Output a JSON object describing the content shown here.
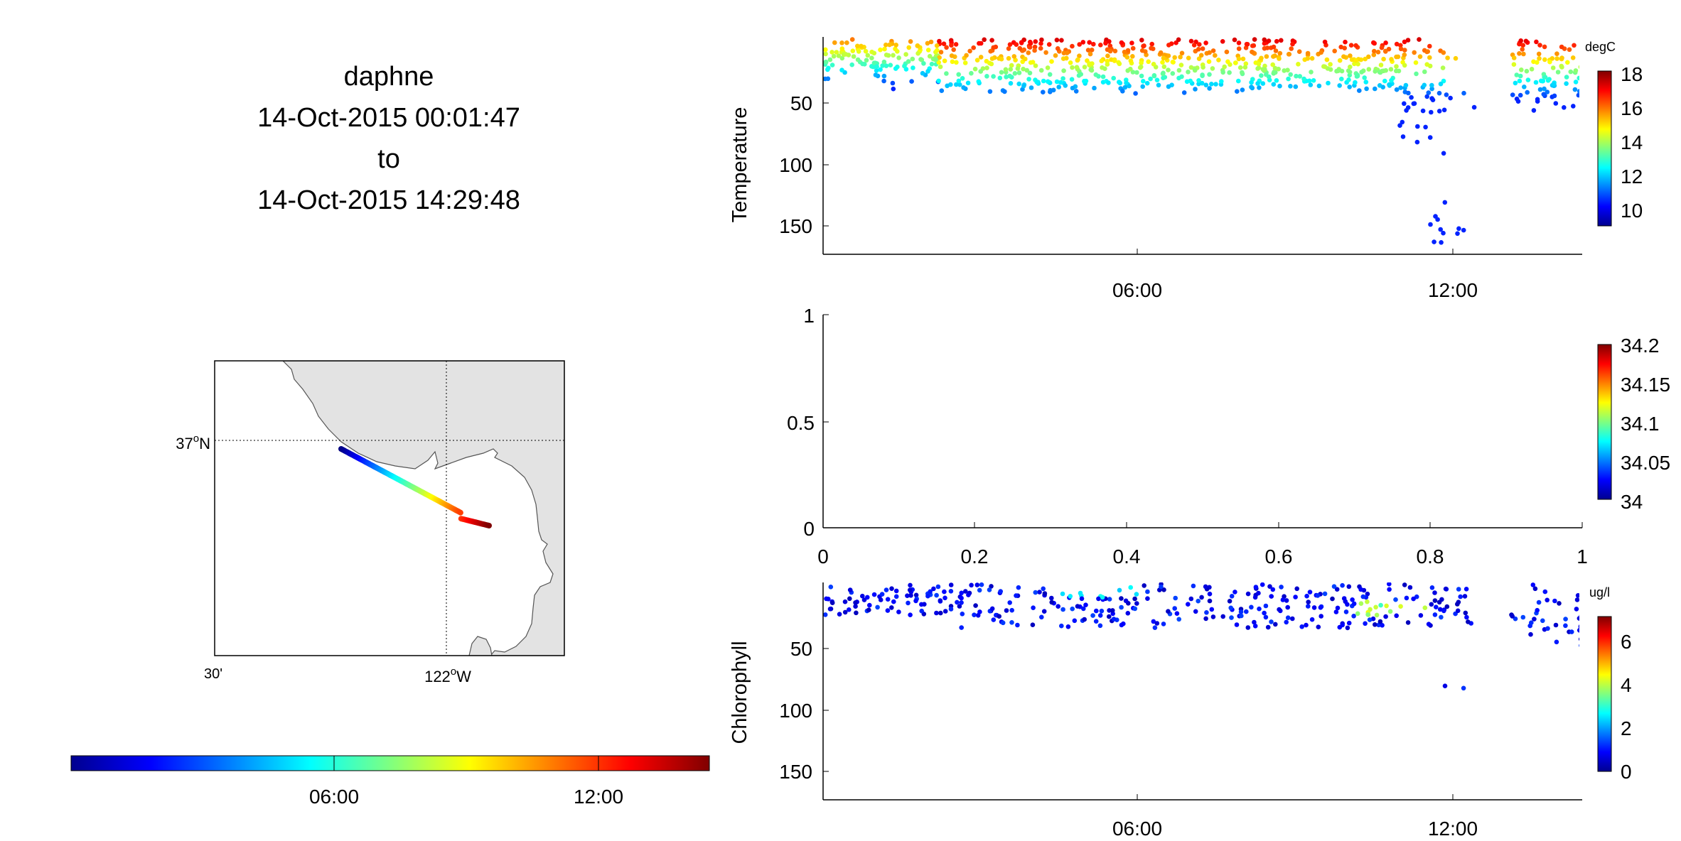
{
  "header": {
    "platform": "daphne",
    "start_time": "14-Oct-2015 00:01:47",
    "separator": "to",
    "end_time": "14-Oct-2015 14:29:48"
  },
  "colors": {
    "map_land": "#e3e3e3",
    "colormap": "jet",
    "axis": "#000000"
  },
  "map": {
    "lat_label": "37",
    "lat_suffix": "N",
    "lon_label_left": "30'",
    "lon_label_right": "122",
    "lon_suffix": "W",
    "track_colorbar_ticks": [
      "06:00",
      "12:00"
    ]
  },
  "chart_data": [
    {
      "type": "scatter",
      "id": "temperature",
      "title": "",
      "xlabel": "",
      "ylabel": "Temperature",
      "x_domain_hours": [
        0,
        14.5
      ],
      "x_tick_labels": [
        "06:00",
        "12:00"
      ],
      "x_tick_hours": [
        6,
        12
      ],
      "ylim": [
        172,
        0
      ],
      "y_reversed": true,
      "y_ticks": [
        50,
        100,
        150
      ],
      "colorbar": {
        "unit": "degC",
        "range": [
          9,
          18.5
        ],
        "ticks": [
          10,
          12,
          14,
          16,
          18
        ]
      },
      "pattern": {
        "deep_spike_hour": 12.0,
        "deep_spike_depth": 170,
        "data_gap_hours": [
          12.5,
          13.1
        ]
      }
    },
    {
      "type": "scatter",
      "id": "salinity",
      "title": "",
      "xlabel": "",
      "ylabel": "",
      "xlim": [
        0,
        1
      ],
      "x_ticks": [
        "0",
        "0.2",
        "0.4",
        "0.6",
        "0.8",
        "1"
      ],
      "ylim": [
        0,
        1
      ],
      "y_ticks": [
        "0",
        "0.5",
        "1"
      ],
      "values": [],
      "colorbar": {
        "unit": "",
        "range": [
          34,
          34.2
        ],
        "ticks": [
          "34",
          "34.05",
          "34.1",
          "34.15",
          "34.2"
        ]
      }
    },
    {
      "type": "scatter",
      "id": "chlorophyll",
      "title": "",
      "xlabel": "",
      "ylabel": "Chlorophyll",
      "x_domain_hours": [
        0,
        14.5
      ],
      "x_tick_labels": [
        "06:00",
        "12:00"
      ],
      "x_tick_hours": [
        6,
        12
      ],
      "ylim": [
        172,
        0
      ],
      "y_reversed": true,
      "y_ticks": [
        50,
        100,
        150
      ],
      "colorbar": {
        "unit": "ug/l",
        "range": [
          0,
          7.2
        ],
        "ticks": [
          0,
          2,
          4,
          6
        ]
      },
      "pattern": {
        "deep_points_hours": [
          11.8,
          12.2
        ],
        "data_gap_hours": [
          12.5,
          13.1
        ]
      }
    }
  ]
}
